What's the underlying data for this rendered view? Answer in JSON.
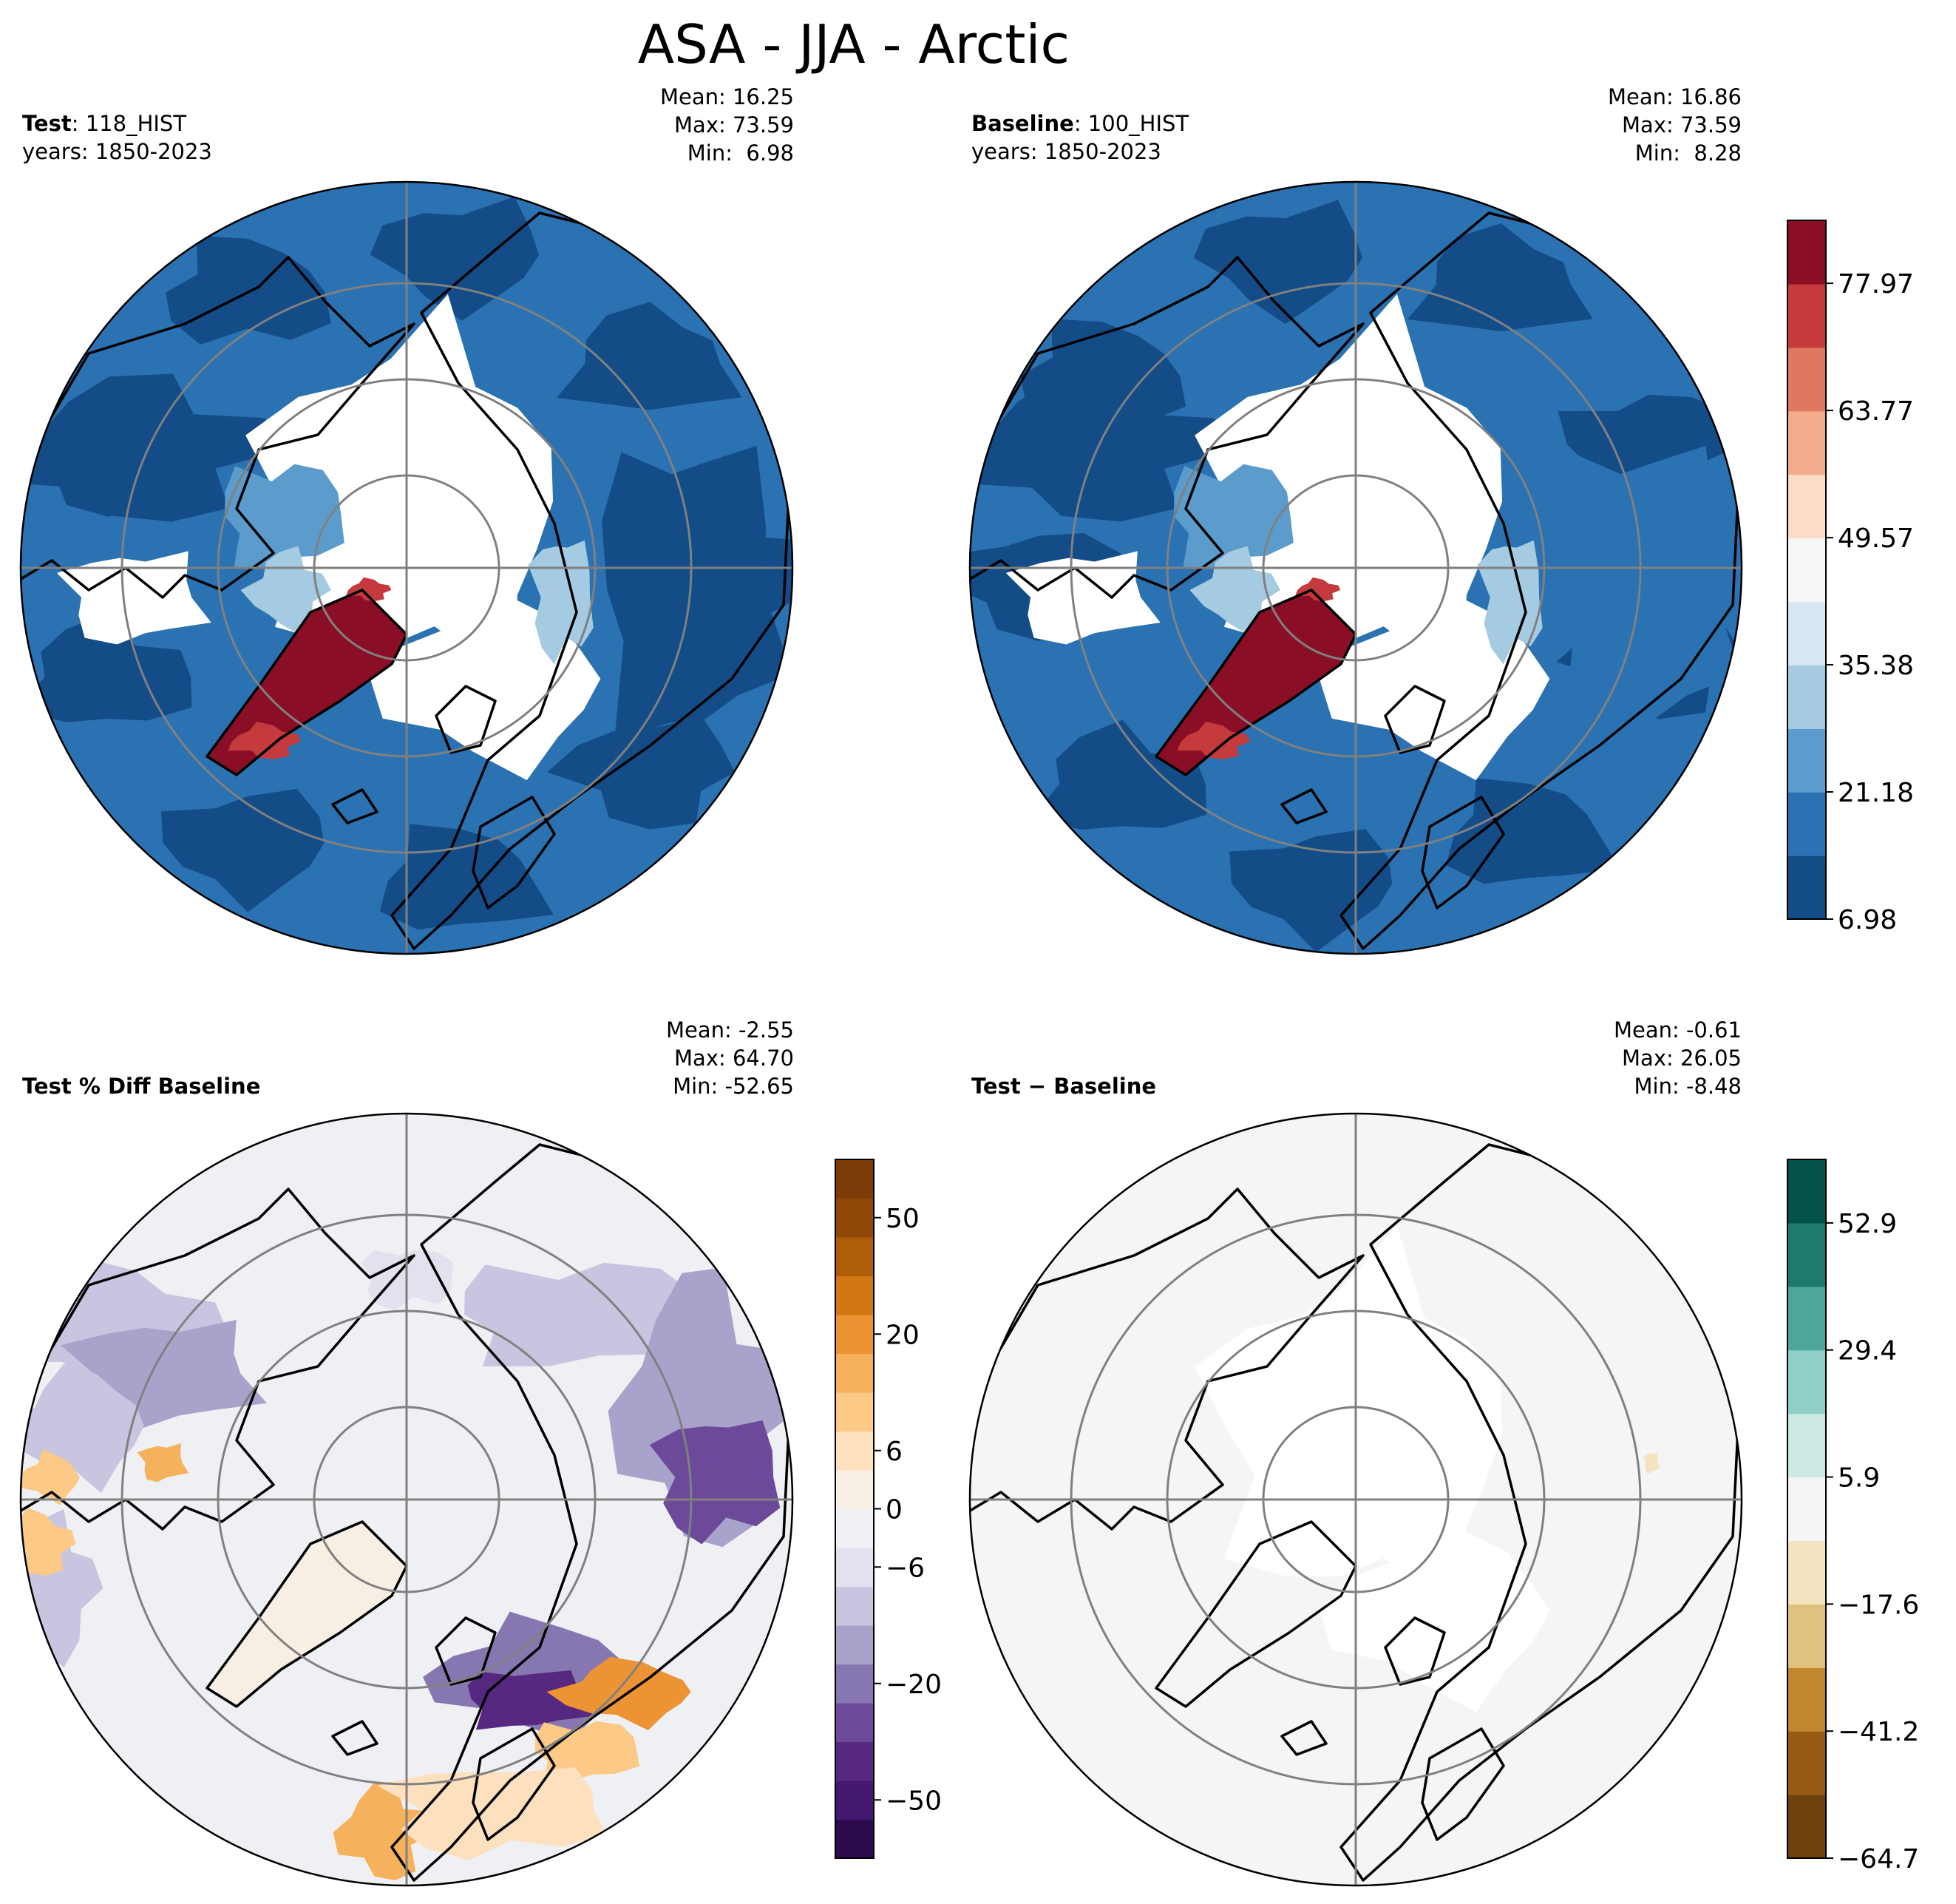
{
  "figure": {
    "title": "ASA - JJA - Arctic"
  },
  "colors": {
    "land_outline": "#000000",
    "grid": "#808080",
    "no_data": "#ffffff"
  },
  "chart_data": [
    {
      "type": "heatmap",
      "id": "test",
      "label_bold": "Test",
      "label_rest": ": 118_HIST",
      "years": "years: 1850-2023",
      "stats": {
        "mean": "Mean: 16.25",
        "max": "Max: 73.59",
        "min": "Min:  6.98"
      },
      "projection": "north-polar-stereographic"
    },
    {
      "type": "heatmap",
      "id": "baseline",
      "label_bold": "Baseline",
      "label_rest": ": 100_HIST",
      "years": "years: 1850-2023",
      "stats": {
        "mean": "Mean: 16.86",
        "max": "Max: 73.59",
        "min": "Min:  8.28"
      },
      "projection": "north-polar-stereographic",
      "colorbar": {
        "name": "RdBu_r",
        "range": [
          6.98,
          85.0
        ],
        "tick_labels": [
          "6.98",
          "21.18",
          "35.38",
          "49.57",
          "63.77",
          "77.97"
        ],
        "tick_values": [
          6.98,
          21.18,
          35.38,
          49.57,
          63.77,
          77.97
        ],
        "levels": 11,
        "colors": [
          "#134c87",
          "#2b72b2",
          "#5b9ccc",
          "#a5cbe2",
          "#d7e6f1",
          "#f7f7f7",
          "#fbdcc8",
          "#f4ad8c",
          "#e0775f",
          "#c53a3c",
          "#8a0e26"
        ]
      }
    },
    {
      "type": "heatmap",
      "id": "pct-diff",
      "label_bold": "Test % Diff Baseline",
      "stats": {
        "mean": "Mean: -2.55",
        "max": "Max: 64.70",
        "min": "Min: -52.65"
      },
      "projection": "north-polar-stereographic",
      "colorbar": {
        "name": "PuOr_r",
        "tick_labels": [
          "−50",
          "−20",
          "−6",
          "0",
          "6",
          "20",
          "50"
        ],
        "colors": [
          "#2d0a4e",
          "#431a6f",
          "#57287f",
          "#6d4a99",
          "#8677b0",
          "#a8a3cb",
          "#c7c5df",
          "#e2e1ee",
          "#eff0f4",
          "#f8efe4",
          "#fde0bd",
          "#fcc987",
          "#f6b15d",
          "#ec9333",
          "#d17812",
          "#b05d0a",
          "#904807",
          "#7c3b07"
        ]
      }
    },
    {
      "type": "heatmap",
      "id": "diff",
      "label_bold": "Test − Baseline",
      "stats": {
        "mean": "Mean: -0.61",
        "max": "Max: 26.05",
        "min": "Min: -8.48"
      },
      "projection": "north-polar-stereographic",
      "colorbar": {
        "name": "BrBG",
        "tick_labels": [
          "−64.7",
          "−41.2",
          "−17.6",
          "5.9",
          "29.4",
          "52.9"
        ],
        "colors": [
          "#6d420e",
          "#995a13",
          "#c2862f",
          "#e0c27f",
          "#f3e3bf",
          "#f4f5f4",
          "#cce9e4",
          "#8ed0c5",
          "#4ea69b",
          "#1d7a6e",
          "#03524a"
        ]
      }
    }
  ]
}
